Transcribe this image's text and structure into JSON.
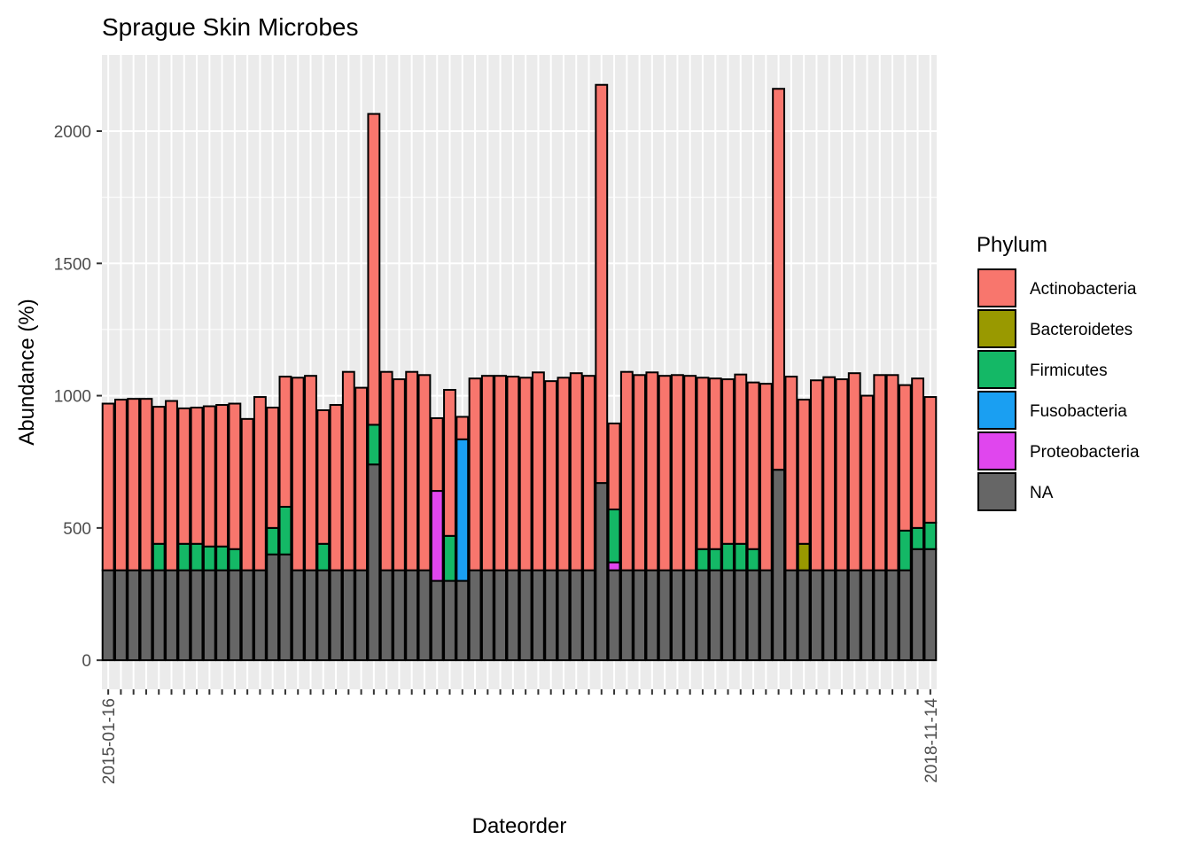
{
  "chart_data": {
    "type": "stacked_bar",
    "title": "Sprague Skin Microbes",
    "x_label": "Dateorder",
    "y_label": "Abundance (%)",
    "legend_title": "Phylum",
    "legend_position": "right",
    "grid": true,
    "ylim": [
      -110,
      2288
    ],
    "yticks": [
      0,
      500,
      1000,
      1500,
      2000
    ],
    "categories": [
      "2015-01-16",
      null,
      null,
      null,
      null,
      null,
      null,
      null,
      null,
      null,
      null,
      null,
      null,
      null,
      null,
      null,
      null,
      null,
      null,
      null,
      null,
      null,
      null,
      null,
      null,
      null,
      null,
      null,
      null,
      null,
      null,
      null,
      null,
      null,
      null,
      null,
      null,
      null,
      null,
      null,
      null,
      null,
      null,
      null,
      null,
      null,
      null,
      null,
      null,
      null,
      null,
      null,
      null,
      null,
      null,
      null,
      null,
      null,
      null,
      null,
      null,
      null,
      null,
      null,
      null,
      "2018-11-14"
    ],
    "series": [
      {
        "name": "Actinobacteria",
        "color": "#f8766d",
        "values": [
          630,
          645,
          648,
          648,
          518,
          640,
          512,
          515,
          530,
          535,
          550,
          572,
          655,
          455,
          492,
          728,
          735,
          505,
          625,
          750,
          690,
          1175,
          750,
          722,
          750,
          738,
          275,
          552,
          85,
          725,
          735,
          735,
          732,
          728,
          748,
          715,
          728,
          745,
          735,
          1505,
          325,
          750,
          738,
          748,
          735,
          738,
          735,
          648,
          645,
          622,
          640,
          630,
          705,
          1440,
          732,
          545,
          718,
          730,
          722,
          745,
          660,
          738,
          738,
          550,
          565,
          475
        ]
      },
      {
        "name": "Bacteroidetes",
        "color": "#999900",
        "values": [
          0,
          0,
          0,
          0,
          0,
          0,
          0,
          0,
          0,
          0,
          0,
          0,
          0,
          0,
          0,
          0,
          0,
          0,
          0,
          0,
          0,
          0,
          0,
          0,
          0,
          0,
          0,
          0,
          0,
          0,
          0,
          0,
          0,
          0,
          0,
          0,
          0,
          0,
          0,
          0,
          0,
          0,
          0,
          0,
          0,
          0,
          0,
          0,
          0,
          0,
          0,
          0,
          0,
          0,
          0,
          100,
          0,
          0,
          0,
          0,
          0,
          0,
          0,
          0,
          0,
          0
        ]
      },
      {
        "name": "Firmicutes",
        "color": "#14b866",
        "values": [
          0,
          0,
          0,
          0,
          100,
          0,
          100,
          100,
          90,
          90,
          80,
          0,
          0,
          100,
          180,
          0,
          0,
          100,
          0,
          0,
          0,
          150,
          0,
          0,
          0,
          0,
          0,
          170,
          0,
          0,
          0,
          0,
          0,
          0,
          0,
          0,
          0,
          0,
          0,
          0,
          200,
          0,
          0,
          0,
          0,
          0,
          0,
          80,
          80,
          100,
          100,
          80,
          0,
          0,
          0,
          0,
          0,
          0,
          0,
          0,
          0,
          0,
          0,
          150,
          80,
          100
        ]
      },
      {
        "name": "Fusobacteria",
        "color": "#1a9ff2",
        "values": [
          0,
          0,
          0,
          0,
          0,
          0,
          0,
          0,
          0,
          0,
          0,
          0,
          0,
          0,
          0,
          0,
          0,
          0,
          0,
          0,
          0,
          0,
          0,
          0,
          0,
          0,
          0,
          0,
          535,
          0,
          0,
          0,
          0,
          0,
          0,
          0,
          0,
          0,
          0,
          0,
          0,
          0,
          0,
          0,
          0,
          0,
          0,
          0,
          0,
          0,
          0,
          0,
          0,
          0,
          0,
          0,
          0,
          0,
          0,
          0,
          0,
          0,
          0,
          0,
          0,
          0
        ]
      },
      {
        "name": "Proteobacteria",
        "color": "#e046ee",
        "values": [
          0,
          0,
          0,
          0,
          0,
          0,
          0,
          0,
          0,
          0,
          0,
          0,
          0,
          0,
          0,
          0,
          0,
          0,
          0,
          0,
          0,
          0,
          0,
          0,
          0,
          0,
          340,
          0,
          0,
          0,
          0,
          0,
          0,
          0,
          0,
          0,
          0,
          0,
          0,
          0,
          30,
          0,
          0,
          0,
          0,
          0,
          0,
          0,
          0,
          0,
          0,
          0,
          0,
          0,
          0,
          0,
          0,
          0,
          0,
          0,
          0,
          0,
          0,
          0,
          0,
          0
        ]
      },
      {
        "name": "NA",
        "color": "#666666",
        "values": [
          340,
          340,
          340,
          340,
          340,
          340,
          340,
          340,
          340,
          340,
          340,
          340,
          340,
          400,
          400,
          340,
          340,
          340,
          340,
          340,
          340,
          740,
          340,
          340,
          340,
          340,
          300,
          300,
          300,
          340,
          340,
          340,
          340,
          340,
          340,
          340,
          340,
          340,
          340,
          670,
          340,
          340,
          340,
          340,
          340,
          340,
          340,
          340,
          340,
          340,
          340,
          340,
          340,
          720,
          340,
          340,
          340,
          340,
          340,
          340,
          340,
          340,
          340,
          340,
          420,
          420
        ]
      }
    ]
  }
}
